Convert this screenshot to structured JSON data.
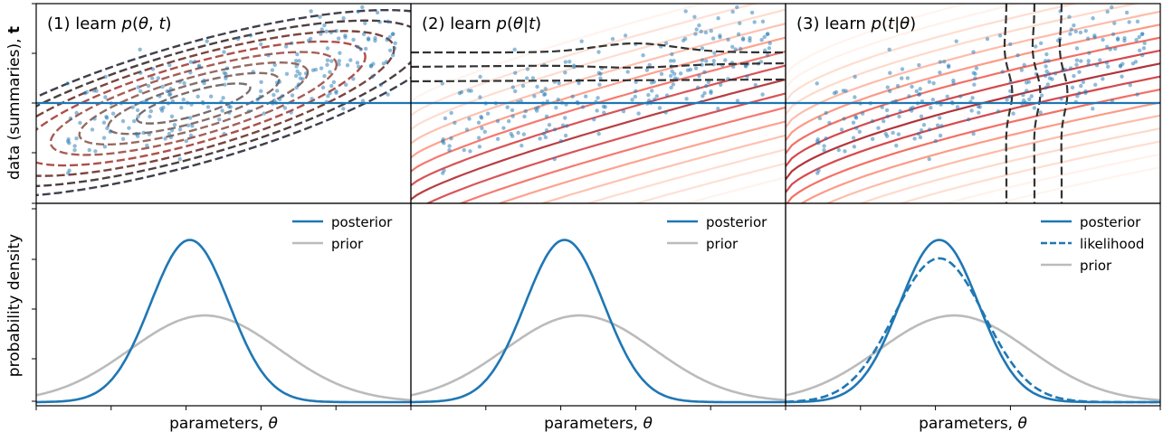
{
  "figure": {
    "top_ylabel": "data (summaries), t",
    "bottom_ylabel": "probability density"
  },
  "chart_data": [
    {
      "type": "scatter",
      "panel": 1,
      "title": "(1) learn p(θ, t)",
      "description": "scatter of (θ, t) samples with dashed contours of the learned joint density and a horizontal line at the observed data",
      "observed_line": "horizontal at observed t",
      "contours": "dashed, grey to red-brown ellipses",
      "xlabel": "",
      "ylabel": "data (summaries), t"
    },
    {
      "type": "scatter",
      "panel": 2,
      "title": "(2) learn p(θ|t)",
      "description": "scatter of (θ, t) samples with red contours of the conditional posterior and dashed black contours",
      "observed_line": "horizontal at observed t"
    },
    {
      "type": "scatter",
      "panel": 3,
      "title": "(3) learn p(t|θ)",
      "description": "scatter of (θ, t) samples with red contours of the conditional likelihood and vertical dashed black contours",
      "observed_line": "horizontal at observed t"
    },
    {
      "type": "line",
      "panel": 1,
      "xlabel": "parameters, θ",
      "ylabel": "probability density",
      "series": [
        {
          "name": "posterior",
          "color": "#1f77b4",
          "style": "solid",
          "mean": 0.41,
          "sd": 0.105,
          "peak": 0.88
        },
        {
          "name": "prior",
          "color": "#bbbbbb",
          "style": "solid",
          "mean": 0.45,
          "sd": 0.2,
          "peak": 0.47
        }
      ]
    },
    {
      "type": "line",
      "panel": 2,
      "xlabel": "parameters, θ",
      "series": [
        {
          "name": "posterior",
          "color": "#1f77b4",
          "style": "solid",
          "mean": 0.41,
          "sd": 0.105,
          "peak": 0.88
        },
        {
          "name": "prior",
          "color": "#bbbbbb",
          "style": "solid",
          "mean": 0.45,
          "sd": 0.2,
          "peak": 0.47
        }
      ]
    },
    {
      "type": "line",
      "panel": 3,
      "xlabel": "parameters, θ",
      "series": [
        {
          "name": "posterior",
          "color": "#1f77b4",
          "style": "solid",
          "mean": 0.41,
          "sd": 0.105,
          "peak": 0.88
        },
        {
          "name": "likelihood",
          "color": "#1f77b4",
          "style": "dashed",
          "mean": 0.41,
          "sd": 0.12,
          "peak": 0.78
        },
        {
          "name": "prior",
          "color": "#bbbbbb",
          "style": "solid",
          "mean": 0.45,
          "sd": 0.2,
          "peak": 0.47
        }
      ]
    }
  ]
}
